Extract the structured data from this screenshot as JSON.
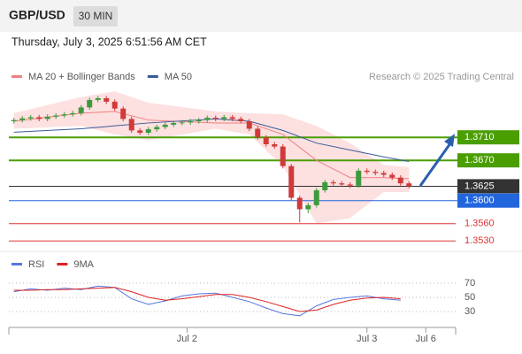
{
  "header": {
    "symbol": "GBP/USD",
    "interval": "30 MIN",
    "timestamp": "Thursday, July 3, 2025 6:51:56 AM CET"
  },
  "chart_data": [
    {
      "type": "candlestick",
      "credit": "Research © 2025 Trading Central",
      "open": [
        1.3738,
        1.374,
        1.3743,
        1.3745,
        1.3742,
        1.3746,
        1.3748,
        1.375,
        1.3752,
        1.3762,
        1.3775,
        1.3778,
        1.3772,
        1.376,
        1.3742,
        1.3722,
        1.3718,
        1.3724,
        1.3728,
        1.3732,
        1.3735,
        1.3736,
        1.3738,
        1.374,
        1.3744,
        1.3742,
        1.3745,
        1.3742,
        1.3738,
        1.3725,
        1.371,
        1.3698,
        1.3694,
        1.366,
        1.3605,
        1.3585,
        1.3592,
        1.3618,
        1.3632,
        1.363,
        1.3628,
        1.3626,
        1.3652,
        1.365,
        1.3648,
        1.3645,
        1.364,
        1.363
      ],
      "high": [
        1.3744,
        1.3747,
        1.3749,
        1.3749,
        1.375,
        1.3752,
        1.3754,
        1.3756,
        1.3766,
        1.3779,
        1.3782,
        1.3782,
        1.3776,
        1.3764,
        1.3746,
        1.3726,
        1.3728,
        1.3732,
        1.3736,
        1.3739,
        1.374,
        1.3742,
        1.3744,
        1.3748,
        1.3748,
        1.3749,
        1.3749,
        1.3746,
        1.3742,
        1.3729,
        1.3714,
        1.3702,
        1.3698,
        1.3664,
        1.3609,
        1.3596,
        1.3622,
        1.3636,
        1.3636,
        1.3634,
        1.3632,
        1.3656,
        1.3656,
        1.3654,
        1.3652,
        1.3649,
        1.3644,
        1.3634
      ],
      "low": [
        1.3734,
        1.3736,
        1.3739,
        1.3738,
        1.3738,
        1.3742,
        1.3744,
        1.3746,
        1.3748,
        1.3758,
        1.3771,
        1.3768,
        1.3756,
        1.3738,
        1.3718,
        1.3714,
        1.3714,
        1.372,
        1.3724,
        1.3728,
        1.3731,
        1.3732,
        1.3734,
        1.3736,
        1.3738,
        1.3738,
        1.3738,
        1.3734,
        1.3721,
        1.3706,
        1.3694,
        1.369,
        1.3656,
        1.3601,
        1.3562,
        1.3578,
        1.3588,
        1.3614,
        1.3626,
        1.3624,
        1.3622,
        1.3622,
        1.3646,
        1.3644,
        1.3641,
        1.3636,
        1.3626,
        1.3621
      ],
      "close": [
        1.374,
        1.3743,
        1.3745,
        1.3742,
        1.3746,
        1.3748,
        1.375,
        1.3752,
        1.3762,
        1.3775,
        1.3778,
        1.3772,
        1.376,
        1.3742,
        1.3722,
        1.3718,
        1.3724,
        1.3728,
        1.3732,
        1.3735,
        1.3736,
        1.3738,
        1.374,
        1.3744,
        1.3742,
        1.3745,
        1.3742,
        1.3738,
        1.3725,
        1.371,
        1.3698,
        1.3694,
        1.366,
        1.3605,
        1.3585,
        1.3592,
        1.3618,
        1.3632,
        1.363,
        1.3628,
        1.3626,
        1.3652,
        1.365,
        1.3648,
        1.3645,
        1.364,
        1.363,
        1.3625
      ],
      "up_color": "#3d9a3d",
      "down_color": "#d03a3a",
      "overlays": [
        {
          "name": "MA 20 + Bollinger Bands",
          "color": "#f08080",
          "band_color": "#fde0e0",
          "x": [
            0,
            8,
            12,
            16,
            24,
            28,
            32,
            36,
            40,
            44,
            47
          ],
          "values": [
            1.3738,
            1.3752,
            1.3755,
            1.374,
            1.3735,
            1.3735,
            1.3715,
            1.367,
            1.364,
            1.364,
            1.3638
          ],
          "upper": [
            1.3752,
            1.378,
            1.379,
            1.377,
            1.3755,
            1.3752,
            1.375,
            1.373,
            1.37,
            1.3662,
            1.3658
          ],
          "lower": [
            1.3725,
            1.373,
            1.3715,
            1.3705,
            1.3725,
            1.3715,
            1.366,
            1.356,
            1.357,
            1.3615,
            1.3615
          ]
        },
        {
          "name": "MA 50",
          "color": "#3a5a9a",
          "x": [
            0,
            8,
            16,
            24,
            28,
            32,
            36,
            40,
            44,
            47
          ],
          "values": [
            1.3719,
            1.3725,
            1.3735,
            1.3742,
            1.3738,
            1.3722,
            1.37,
            1.3688,
            1.3676,
            1.3668
          ]
        }
      ],
      "levels": [
        {
          "value": 1.371,
          "label": "1.3710",
          "color": "#4a9e00",
          "style": "box"
        },
        {
          "value": 1.367,
          "label": "1.3670",
          "color": "#4a9e00",
          "style": "box"
        },
        {
          "value": 1.3625,
          "label": "1.3625",
          "color": "#333333",
          "style": "box"
        },
        {
          "value": 1.36,
          "label": "1.3600",
          "color": "#2266dd",
          "style": "box"
        },
        {
          "value": 1.356,
          "label": "1.3560",
          "color": "#dd3333",
          "style": "text"
        },
        {
          "value": 1.353,
          "label": "1.3530",
          "color": "#dd3333",
          "style": "text"
        }
      ],
      "xlim": [
        -0.6,
        52.55
      ],
      "ylim": [
        1.3518,
        1.37949
      ],
      "xticks": [
        {
          "value": 20.6,
          "label": "Jul 2"
        },
        {
          "value": 42,
          "label": "Jul 3"
        },
        {
          "value": 49,
          "label": "Jul 6"
        }
      ]
    },
    {
      "type": "line",
      "x": [
        0,
        2,
        4,
        6,
        8,
        10,
        12,
        14,
        16,
        18,
        20,
        22,
        24,
        26,
        28,
        30,
        32,
        34,
        36,
        38,
        40,
        42,
        44,
        46
      ],
      "series": [
        {
          "name": "RSI",
          "color": "#5577dd",
          "values": [
            58,
            62,
            60,
            63,
            61,
            66,
            64,
            48,
            40,
            45,
            52,
            55,
            56,
            50,
            44,
            35,
            27,
            24,
            38,
            47,
            50,
            52,
            48,
            46
          ]
        },
        {
          "name": "9MA",
          "color": "#dd2222",
          "values": [
            60,
            60,
            61,
            61,
            62,
            63,
            64,
            58,
            50,
            46,
            48,
            51,
            54,
            54,
            50,
            44,
            37,
            30,
            32,
            40,
            46,
            49,
            50,
            48
          ]
        }
      ],
      "ylim": [
        7.5,
        95
      ],
      "yticks": [
        70,
        50,
        30
      ],
      "xlim": [
        -0.6,
        52.55
      ]
    }
  ]
}
